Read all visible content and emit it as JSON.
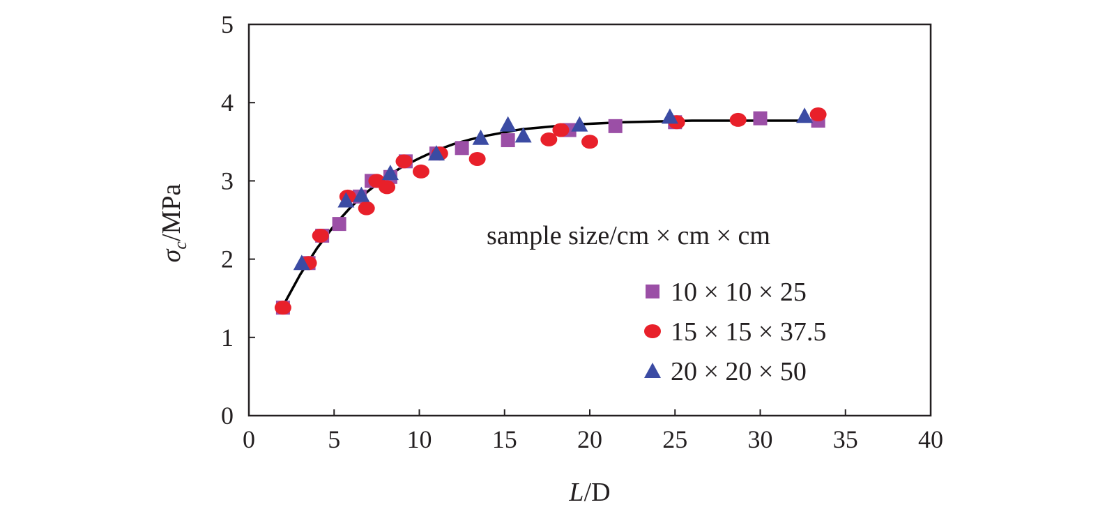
{
  "chart_data": {
    "type": "scatter",
    "title": "",
    "xlabel": {
      "italic": "L",
      "rest": "/D"
    },
    "ylabel": {
      "symbol": "σ",
      "sub": "c",
      "rest": "/MPa"
    },
    "xlim": [
      0,
      40
    ],
    "ylim": [
      0,
      5
    ],
    "xticks": [
      "0",
      "5",
      "10",
      "15",
      "20",
      "25",
      "30",
      "35",
      "40"
    ],
    "yticks": [
      "0",
      "1",
      "2",
      "3",
      "4",
      "5"
    ],
    "grid": false,
    "legend": {
      "position": "right",
      "title": "sample size/cm × cm × cm"
    },
    "series": [
      {
        "name": "10 × 10 ×  25",
        "marker": "square",
        "color": "#9b4fa6",
        "points": [
          [
            2,
            1.38
          ],
          [
            3.5,
            1.95
          ],
          [
            4.3,
            2.3
          ],
          [
            5.3,
            2.45
          ],
          [
            6.5,
            2.8
          ],
          [
            7.2,
            3.0
          ],
          [
            8.3,
            3.05
          ],
          [
            9.2,
            3.25
          ],
          [
            11,
            3.35
          ],
          [
            12.5,
            3.42
          ],
          [
            15.2,
            3.52
          ],
          [
            18.8,
            3.65
          ],
          [
            21.5,
            3.7
          ],
          [
            25,
            3.75
          ],
          [
            30,
            3.8
          ],
          [
            33.4,
            3.77
          ]
        ]
      },
      {
        "name": "15 × 15 × 37.5",
        "marker": "circle",
        "color": "#e8202a",
        "points": [
          [
            2,
            1.38
          ],
          [
            3.5,
            1.95
          ],
          [
            4.2,
            2.3
          ],
          [
            5.8,
            2.8
          ],
          [
            6.9,
            2.65
          ],
          [
            7.5,
            3.0
          ],
          [
            8.1,
            2.92
          ],
          [
            9.1,
            3.25
          ],
          [
            10.1,
            3.12
          ],
          [
            11.2,
            3.35
          ],
          [
            13.4,
            3.28
          ],
          [
            17.6,
            3.53
          ],
          [
            18.3,
            3.65
          ],
          [
            20,
            3.5
          ],
          [
            25.1,
            3.75
          ],
          [
            28.7,
            3.78
          ],
          [
            33.4,
            3.85
          ]
        ]
      },
      {
        "name": "20 × 20 × 50",
        "marker": "triangle",
        "color": "#3b4ba3",
        "points": [
          [
            3.1,
            1.95
          ],
          [
            5.7,
            2.75
          ],
          [
            6.6,
            2.82
          ],
          [
            8.3,
            3.1
          ],
          [
            11,
            3.35
          ],
          [
            13.6,
            3.55
          ],
          [
            15.2,
            3.72
          ],
          [
            16.1,
            3.58
          ],
          [
            19.4,
            3.72
          ],
          [
            24.7,
            3.82
          ],
          [
            32.6,
            3.83
          ]
        ]
      }
    ],
    "fit_line": {
      "color": "#000000",
      "points": [
        [
          2,
          1.4
        ],
        [
          3,
          1.8
        ],
        [
          4,
          2.14
        ],
        [
          5,
          2.43
        ],
        [
          6,
          2.67
        ],
        [
          7,
          2.87
        ],
        [
          8,
          3.04
        ],
        [
          9,
          3.18
        ],
        [
          10,
          3.29
        ],
        [
          11,
          3.39
        ],
        [
          12,
          3.47
        ],
        [
          13,
          3.53
        ],
        [
          14,
          3.58
        ],
        [
          15,
          3.62
        ],
        [
          16,
          3.66
        ],
        [
          17,
          3.68
        ],
        [
          18,
          3.7
        ],
        [
          19,
          3.72
        ],
        [
          20,
          3.73
        ],
        [
          22,
          3.75
        ],
        [
          24,
          3.76
        ],
        [
          26,
          3.77
        ],
        [
          28,
          3.77
        ],
        [
          30,
          3.77
        ],
        [
          33.4,
          3.77
        ]
      ]
    }
  }
}
